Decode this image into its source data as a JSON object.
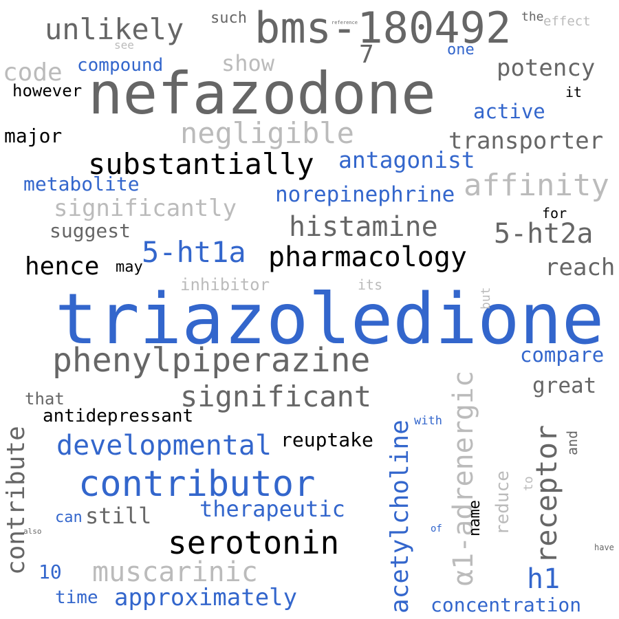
{
  "colors": {
    "blue": "#3366cc",
    "dark_gray": "#666666",
    "light_gray": "#bbbbbb",
    "black": "#000000"
  },
  "words": {
    "triazoledione": "triazoledione",
    "nefazodone": "nefazodone",
    "bms_180492": "bms-180492",
    "phenylpiperazine": "phenylpiperazine",
    "contributor": "contributor",
    "unlikely": "unlikely",
    "substantially": "substantially",
    "significant": "significant",
    "serotonin": "serotonin",
    "receptor": "receptor",
    "a1_adrenergic": "α1-adrenergic",
    "affinity": "affinity",
    "negligible": "negligible",
    "histamine": "histamine",
    "pharmacology": "pharmacology",
    "muscarinic": "muscarinic",
    "acetylcholine": "acetylcholine",
    "developmental": "developmental",
    "ht1a": "5-ht1a",
    "ht2a": "5-ht2a",
    "hence": "hence",
    "potency": "potency",
    "code": "code",
    "transporter": "transporter",
    "significantly": "significantly",
    "approximately": "approximately",
    "contribute": "contribute",
    "antagonist": "antagonist",
    "norepinephrine": "norepinephrine",
    "reach": "reach",
    "show": "show",
    "therapeutic": "therapeutic",
    "still": "still",
    "h1": "h1",
    "concentration": "concentration",
    "compare": "compare",
    "metabolite": "metabolite",
    "great": "great",
    "active": "active",
    "reuptake": "reuptake",
    "antidepressant": "antidepressant",
    "compound": "compound",
    "suggest": "suggest",
    "inhibitor": "inhibitor",
    "major": "major",
    "however": "however",
    "seven": "7",
    "ten": "10",
    "time": "time",
    "such": "such",
    "one": "one",
    "that": "that",
    "reduce": "reduce",
    "may": "may",
    "can": "can",
    "for": "for",
    "it": "it",
    "its": "its",
    "see": "see",
    "the": "the",
    "effect": "effect",
    "with": "with",
    "name": "name",
    "and": "and",
    "to": "to",
    "but": "but",
    "of": "of",
    "have": "have",
    "also": "also",
    "reference": "reference"
  }
}
